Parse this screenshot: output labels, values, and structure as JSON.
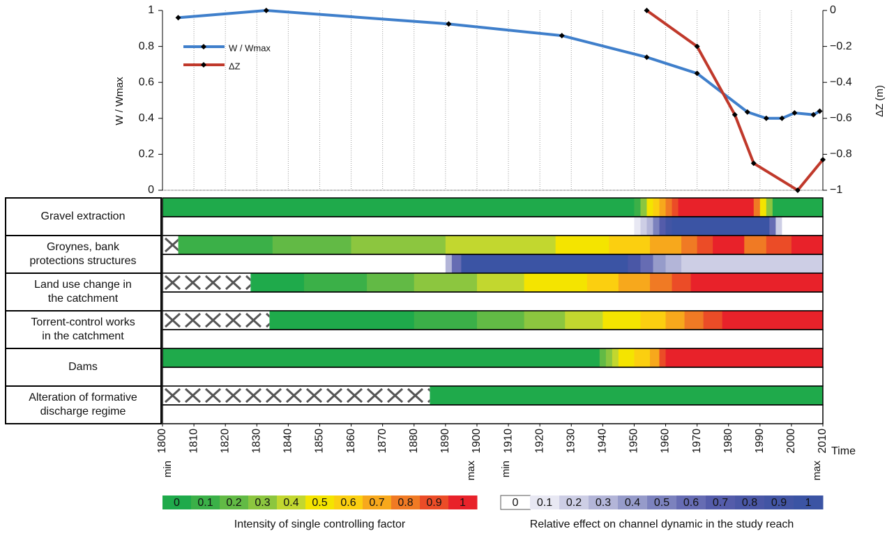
{
  "chart_data": [
    {
      "type": "line",
      "ylabel": "W / Wmax",
      "y2label": "ΔZ (m)",
      "xlabel": "Time",
      "xlim": [
        1800,
        2010
      ],
      "xticks": [
        1800,
        1810,
        1820,
        1830,
        1840,
        1850,
        1860,
        1870,
        1880,
        1890,
        1900,
        1910,
        1920,
        1930,
        1940,
        1950,
        1960,
        1970,
        1980,
        1990,
        2000,
        2010
      ],
      "ylim": [
        0,
        1
      ],
      "yticks": [
        0,
        0.2,
        0.4,
        0.6,
        0.8,
        1
      ],
      "y2lim": [
        -1,
        0
      ],
      "y2ticks": [
        {
          "value": -1,
          "label": "−1"
        },
        {
          "value": -0.8,
          "label": "−0.8"
        },
        {
          "value": -0.6,
          "label": "−0.6"
        },
        {
          "value": -0.4,
          "label": "−0.4"
        },
        {
          "value": -0.2,
          "label": "−0.2"
        },
        0
      ],
      "grid": true,
      "legend": "upper left",
      "series": [
        {
          "name": "W / Wmax",
          "color": "#3f7fcb",
          "x": [
            1805,
            1833,
            1891,
            1927,
            1954,
            1970,
            1986,
            1992,
            1997,
            2001,
            2007,
            2009
          ],
          "values": [
            0.96,
            1.0,
            0.925,
            0.86,
            0.74,
            0.65,
            0.435,
            0.4,
            0.4,
            0.43,
            0.42,
            0.44
          ]
        },
        {
          "name": "ΔZ",
          "color": "#c0392b",
          "axis": "y2",
          "x": [
            1954,
            1970,
            1982,
            1988,
            2002,
            2010
          ],
          "values": [
            0,
            -0.2,
            -0.58,
            -0.85,
            -1.0,
            -0.83
          ]
        }
      ]
    },
    {
      "type": "factor-strips",
      "xlim": [
        1800,
        2010
      ],
      "factors": [
        {
          "label": [
            "Gravel extraction"
          ],
          "intensity": {
            "x": [
              1800,
              1950,
              1952,
              1954,
              1956,
              1958,
              1960,
              1962,
              1964,
              1988,
              1990,
              1992,
              1994
            ],
            "values": [
              0,
              0.1,
              0.3,
              0.5,
              0.6,
              0.7,
              0.8,
              0.9,
              1,
              0.8,
              0.5,
              0.3,
              0
            ]
          },
          "effect": {
            "x": [
              1800,
              1950,
              1952,
              1954,
              1956,
              1958,
              1960,
              1962,
              1993,
              1995,
              1997
            ],
            "values": [
              0,
              0.1,
              0.2,
              0.3,
              0.5,
              0.7,
              0.9,
              1,
              0.6,
              0.2,
              0
            ]
          }
        },
        {
          "label": [
            "Groynes, bank",
            "protections structures"
          ],
          "absent_until": 1805,
          "intensity": {
            "x": [
              1805,
              1835,
              1860,
              1890,
              1925,
              1942,
              1955,
              1965,
              1970,
              1975,
              1985,
              1992,
              2000
            ],
            "values": [
              0.1,
              0.2,
              0.3,
              0.4,
              0.5,
              0.6,
              0.7,
              0.8,
              0.9,
              1,
              0.8,
              0.9,
              1
            ]
          },
          "effect": {
            "x": [
              1800,
              1890,
              1892,
              1895,
              1948,
              1952,
              1956,
              1960,
              1965
            ],
            "values": [
              0,
              0.3,
              0.6,
              1,
              0.8,
              0.6,
              0.4,
              0.3,
              0.2
            ]
          }
        },
        {
          "label": [
            "Land use change in",
            "the catchment"
          ],
          "absent_until": 1828,
          "intensity": {
            "x": [
              1828,
              1845,
              1865,
              1880,
              1900,
              1915,
              1935,
              1945,
              1955,
              1962,
              1968
            ],
            "values": [
              0,
              0.1,
              0.2,
              0.3,
              0.4,
              0.5,
              0.6,
              0.7,
              0.8,
              0.9,
              1
            ]
          },
          "effect": {
            "x": [
              1800
            ],
            "values": [
              0
            ]
          }
        },
        {
          "label": [
            "Torrent-control works",
            "in the catchment"
          ],
          "absent_until": 1834,
          "intensity": {
            "x": [
              1834,
              1880,
              1900,
              1915,
              1928,
              1940,
              1952,
              1960,
              1966,
              1972,
              1978
            ],
            "values": [
              0,
              0.1,
              0.2,
              0.3,
              0.4,
              0.5,
              0.6,
              0.7,
              0.8,
              0.9,
              1
            ]
          },
          "effect": {
            "x": [
              1800
            ],
            "values": [
              0
            ]
          }
        },
        {
          "label": [
            "Dams"
          ],
          "intensity": {
            "x": [
              1800,
              1939,
              1941,
              1943,
              1945,
              1950,
              1955,
              1958,
              1960
            ],
            "values": [
              0,
              0.2,
              0.3,
              0.4,
              0.5,
              0.6,
              0.7,
              0.9,
              1
            ]
          },
          "effect": {
            "x": [
              1800
            ],
            "values": [
              0
            ]
          }
        },
        {
          "label": [
            "Alteration of formative",
            "discharge regime"
          ],
          "absent_until": 1885,
          "intensity": {
            "x": [
              1885
            ],
            "values": [
              0
            ]
          },
          "effect": {
            "x": [
              1800
            ],
            "values": [
              0
            ]
          }
        }
      ],
      "intensity_scale": {
        "title": "Intensity of single controlling factor",
        "min_label": "min",
        "max_label": "max",
        "levels": [
          0,
          0.1,
          0.2,
          0.3,
          0.4,
          0.5,
          0.6,
          0.7,
          0.8,
          0.9,
          1
        ],
        "colors": [
          "#1faa4b",
          "#3bb048",
          "#62ba45",
          "#8cc63f",
          "#c2d72f",
          "#f4e400",
          "#fbcf10",
          "#f7a81c",
          "#f07a24",
          "#eb4c27",
          "#e8222a"
        ]
      },
      "effect_scale": {
        "title": "Relative effect on channel dynamic in the study reach",
        "min_label": "min",
        "max_label": "max",
        "levels": [
          0,
          0.1,
          0.2,
          0.3,
          0.4,
          0.5,
          0.6,
          0.7,
          0.8,
          0.9,
          1
        ],
        "colors": [
          "#ffffff",
          "#e8e8f3",
          "#cdcee5",
          "#b3b5d8",
          "#969bca",
          "#7c82be",
          "#666cb3",
          "#545caa",
          "#4a57a6",
          "#4255a4",
          "#3b54a4"
        ]
      }
    }
  ]
}
